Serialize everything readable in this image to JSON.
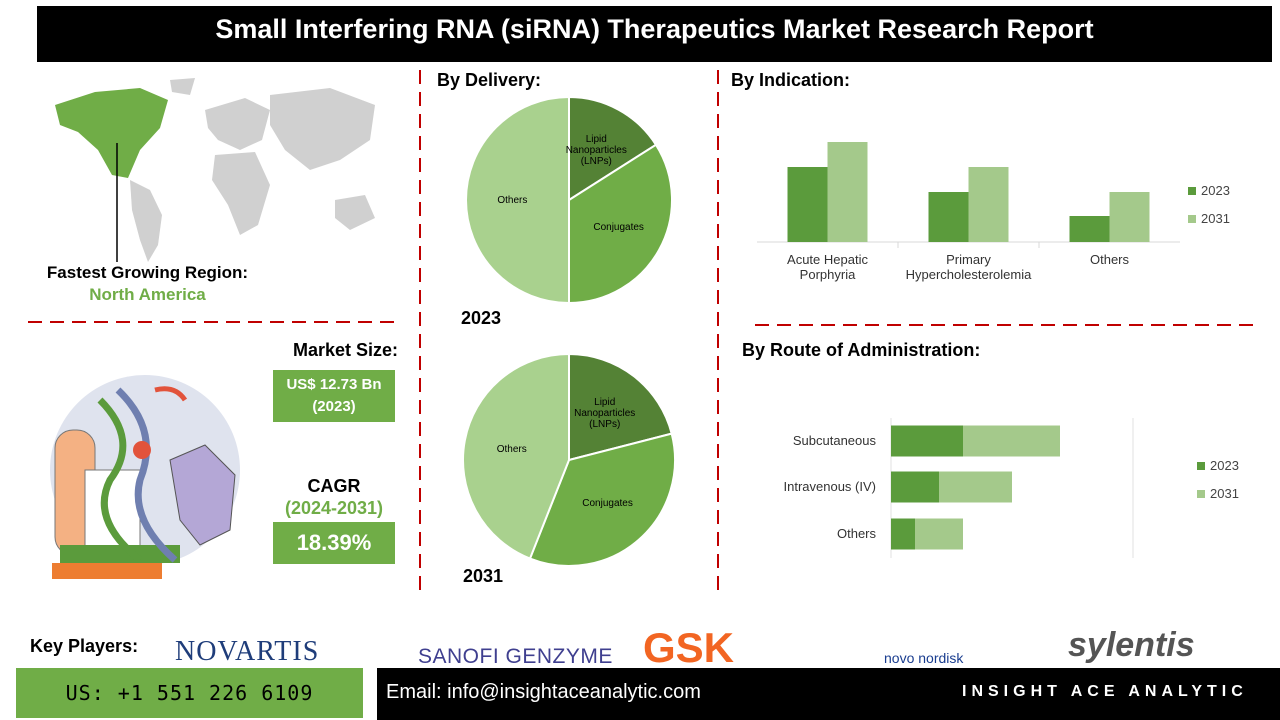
{
  "header": {
    "title": "Small Interfering RNA (siRNA) Therapeutics Market Research Report"
  },
  "region": {
    "label": "Fastest Growing Region:",
    "value": "North America"
  },
  "market_size": {
    "label": "Market Size:",
    "value": "US$ 12.73 Bn",
    "year": "(2023)"
  },
  "cagr": {
    "label": "CAGR",
    "period": "(2024-2031)",
    "value": "18.39%"
  },
  "chart_data": [
    {
      "type": "pie",
      "title": "By Delivery:",
      "subtitle": "2023",
      "categories": [
        "Lipid Nanoparticles (LNPs)",
        "Conjugates",
        "Others"
      ],
      "values": [
        16,
        34,
        50
      ],
      "colors": [
        "#548235",
        "#70ad47",
        "#a9d18e"
      ]
    },
    {
      "type": "pie",
      "subtitle": "2031",
      "categories": [
        "Lipid Nanoparticles (LNPs)",
        "Conjugates",
        "Others"
      ],
      "values": [
        21,
        35,
        44
      ],
      "colors": [
        "#548235",
        "#70ad47",
        "#a9d18e"
      ]
    },
    {
      "type": "bar",
      "title": "By Indication:",
      "categories": [
        "Acute Hepatic Porphyria",
        "Primary Hypercholesterolemia",
        "Others"
      ],
      "series": [
        {
          "name": "2023",
          "color": "#5b9b3c",
          "values": [
            75,
            50,
            26
          ]
        },
        {
          "name": "2031",
          "color": "#a4c98b",
          "values": [
            100,
            75,
            50
          ]
        }
      ],
      "ylim": [
        0,
        110
      ],
      "legend": "right"
    },
    {
      "type": "hbar-stacked",
      "title": "By Route of Administration:",
      "categories": [
        "Subcutaneous",
        "Intravenous (IV)",
        "Others"
      ],
      "series": [
        {
          "name": "2023",
          "color": "#5b9b3c",
          "values": [
            72,
            48,
            24
          ]
        },
        {
          "name": "2031",
          "color": "#a4c98b",
          "values": [
            97,
            73,
            48
          ]
        }
      ],
      "xlim": [
        0,
        242
      ],
      "legend": "right"
    }
  ],
  "key_players": {
    "label": "Key Players:",
    "names": [
      "NOVARTIS",
      "SANOFI GENZYME",
      "GSK",
      "novo nordisk",
      "sylentis"
    ]
  },
  "footer": {
    "phone": "US: +1 551 226 6109",
    "email": "Email: info@insightaceanalytic.com",
    "brand": "INSIGHT ACE ANALYTIC"
  }
}
